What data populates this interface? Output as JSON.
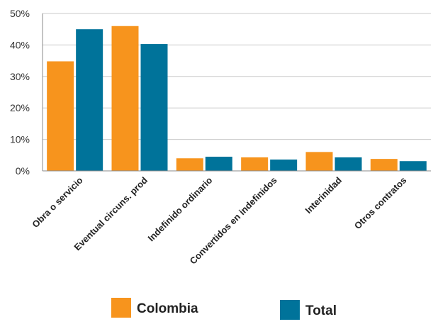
{
  "chart_data": {
    "type": "bar",
    "title": "",
    "xlabel": "",
    "ylabel": "",
    "categories": [
      "Obra o servicio",
      "Eventual circuns. prod",
      "Indefinido ordinario",
      "Convertidos en indefinidos",
      "Interinidad",
      "Otros contratos"
    ],
    "series": [
      {
        "name": "Colombia",
        "color": "#f7941d",
        "values": [
          34.8,
          46.0,
          4.0,
          4.3,
          6.0,
          3.8
        ]
      },
      {
        "name": "Total",
        "color": "#00739a",
        "values": [
          45.0,
          40.3,
          4.5,
          3.6,
          4.3,
          3.1
        ]
      }
    ],
    "ylim": [
      0,
      50
    ],
    "yticks": [
      0,
      10,
      20,
      30,
      40,
      50
    ],
    "ytick_labels": [
      "0%",
      "10%",
      "20%",
      "30%",
      "40%",
      "50%"
    ],
    "grid": true,
    "legend_position": "bottom"
  }
}
